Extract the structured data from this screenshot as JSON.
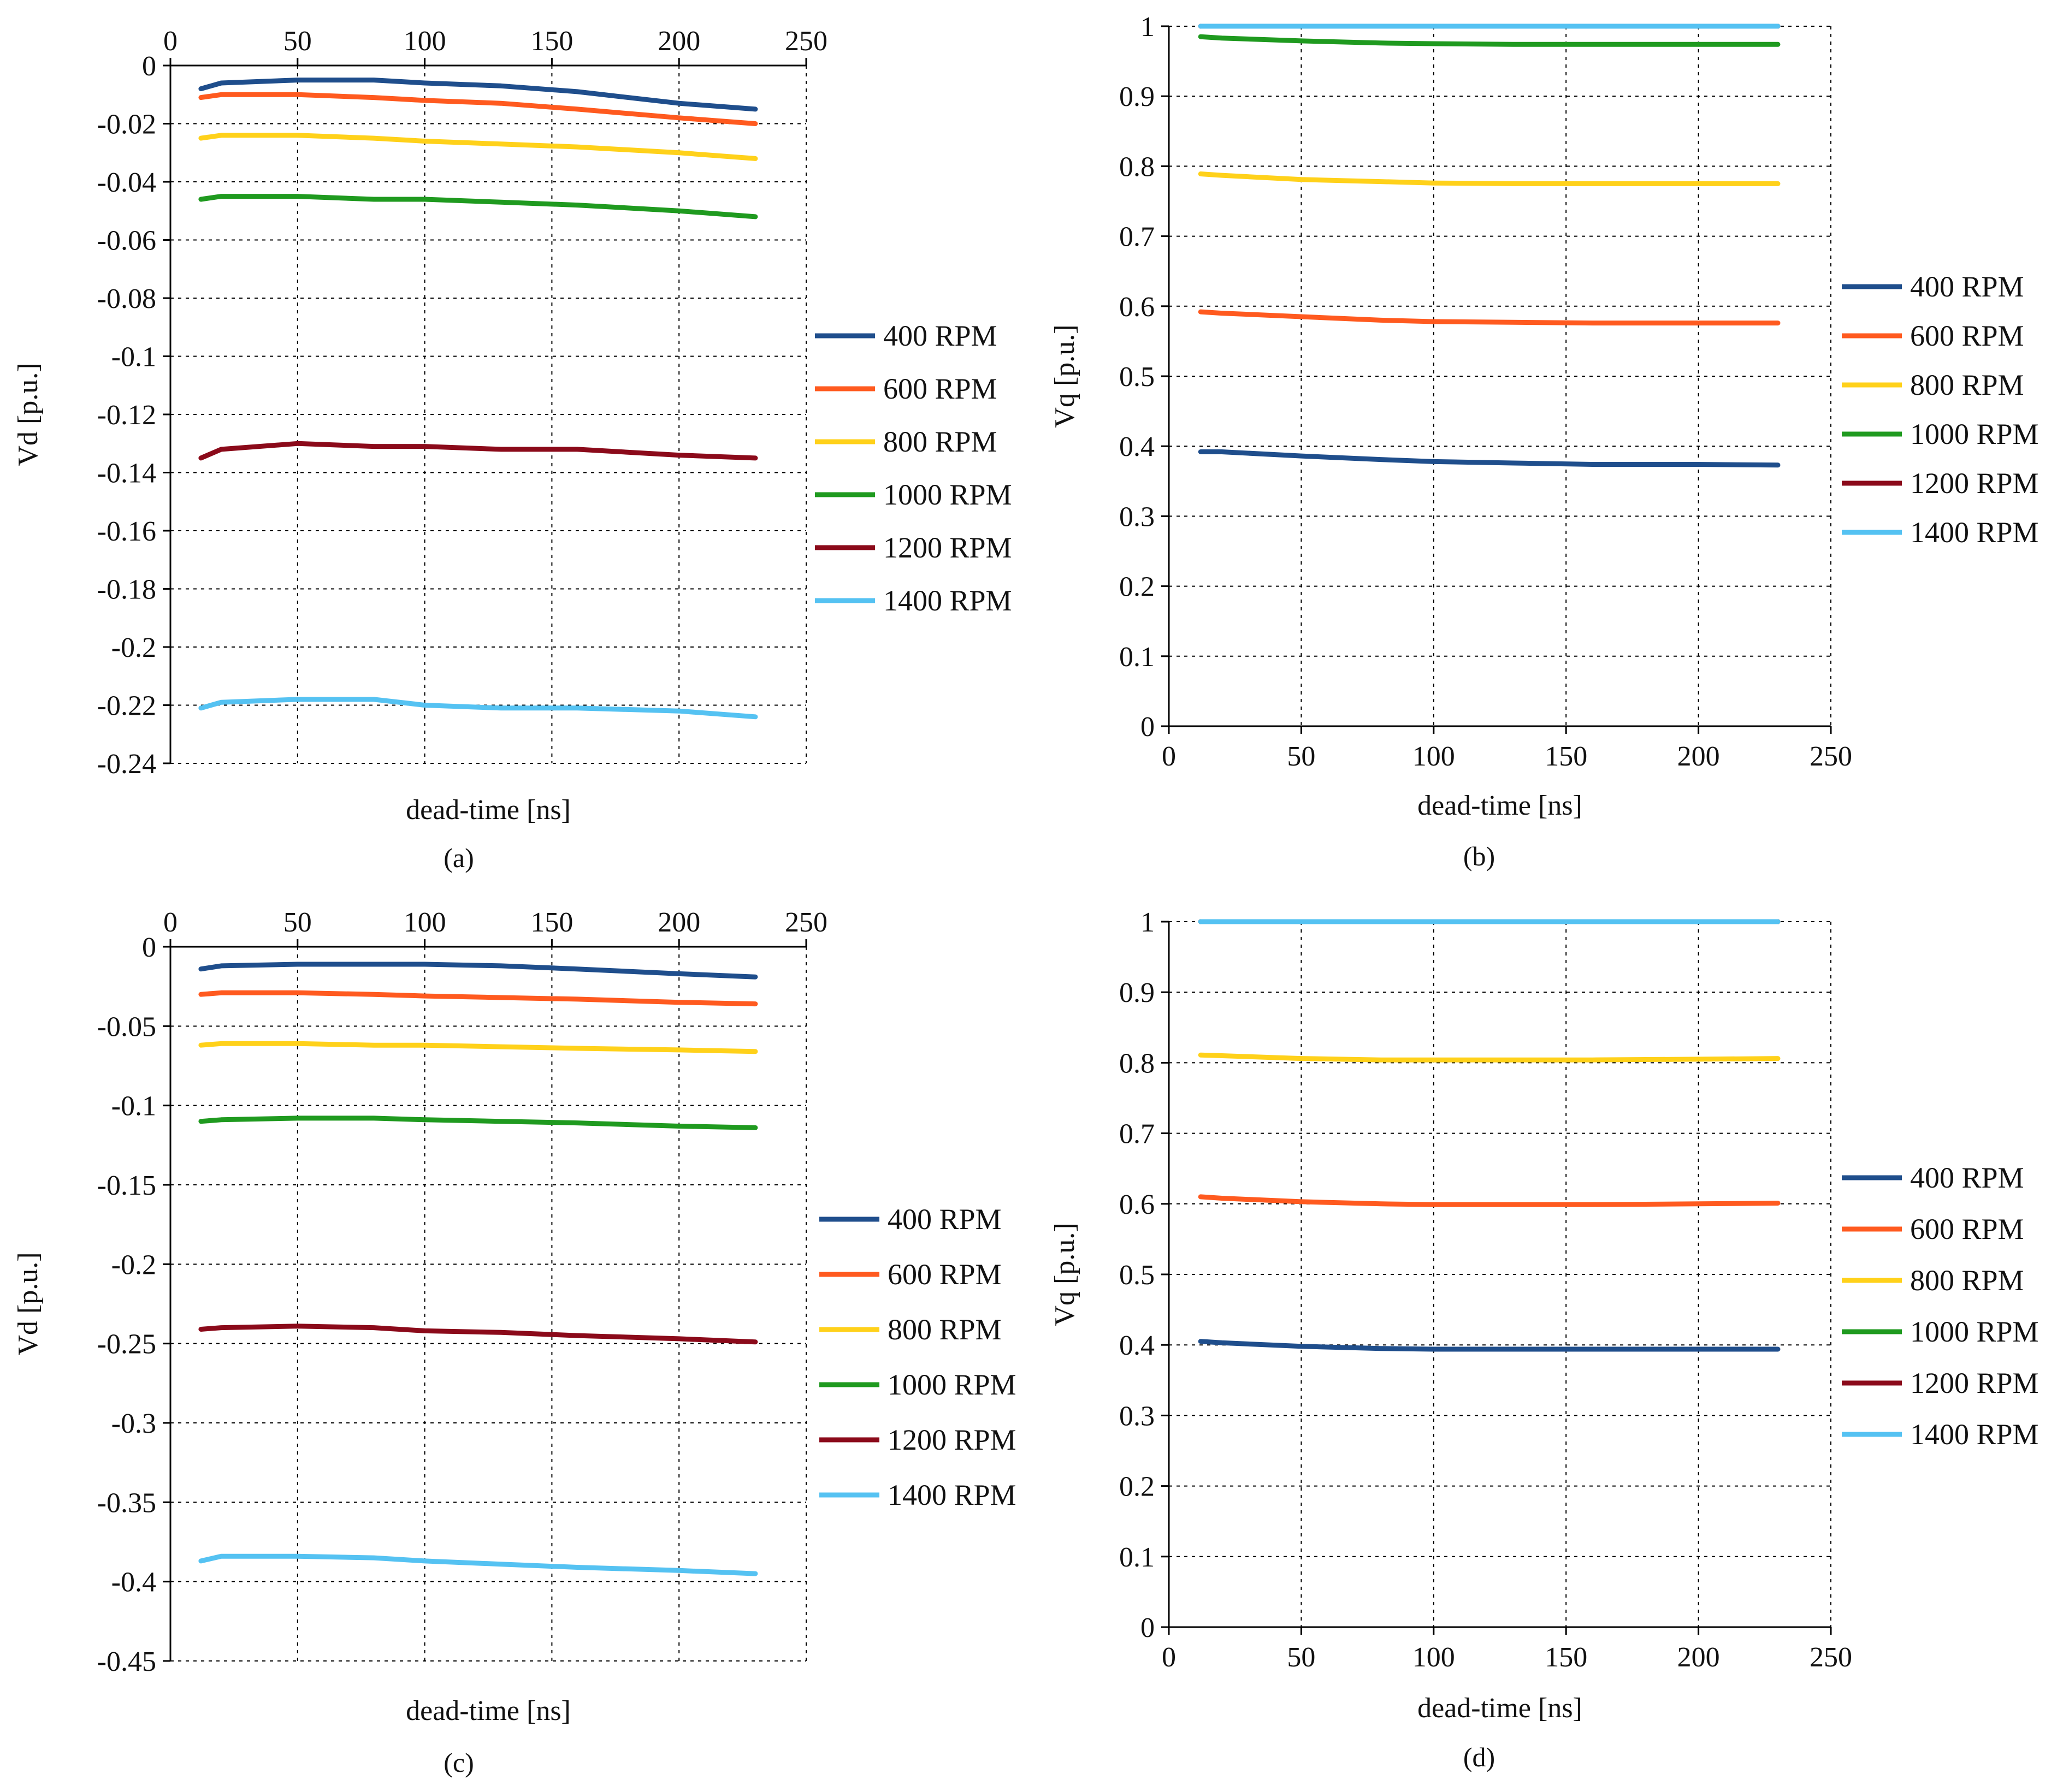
{
  "chart_data": [
    {
      "type": "line",
      "panel": "a",
      "caption": "(a)",
      "xlabel": "dead-time [ns]",
      "ylabel": "Vd [p.u.]",
      "x_axis_position": "top",
      "xlim": [
        0,
        250
      ],
      "xticks": [
        0,
        50,
        100,
        150,
        200,
        250
      ],
      "ylim": [
        -0.24,
        0
      ],
      "yticks": [
        0,
        -0.02,
        -0.04,
        -0.06,
        -0.08,
        -0.1,
        -0.12,
        -0.14,
        -0.16,
        -0.18,
        -0.2,
        -0.22,
        -0.24
      ],
      "ytick_labels": [
        "0",
        "-0.02",
        "-0.04",
        "-0.06",
        "-0.08",
        "-0.1",
        "-0.12",
        "-0.14",
        "-0.16",
        "-0.18",
        "-0.2",
        "-0.22",
        "-0.24"
      ],
      "grid": true,
      "legend": "right",
      "x": [
        12,
        20,
        50,
        80,
        100,
        130,
        160,
        200,
        230
      ],
      "series": [
        {
          "name": "400 RPM",
          "color": "#1f4e8c",
          "values": [
            -0.008,
            -0.006,
            -0.005,
            -0.005,
            -0.006,
            -0.007,
            -0.009,
            -0.013,
            -0.015
          ]
        },
        {
          "name": "600 RPM",
          "color": "#ff5a1f",
          "values": [
            -0.011,
            -0.01,
            -0.01,
            -0.011,
            -0.012,
            -0.013,
            -0.015,
            -0.018,
            -0.02
          ]
        },
        {
          "name": "800 RPM",
          "color": "#ffd11a",
          "values": [
            -0.025,
            -0.024,
            -0.024,
            -0.025,
            -0.026,
            -0.027,
            -0.028,
            -0.03,
            -0.032
          ]
        },
        {
          "name": "1000 RPM",
          "color": "#1f9a1f",
          "values": [
            -0.046,
            -0.045,
            -0.045,
            -0.046,
            -0.046,
            -0.047,
            -0.048,
            -0.05,
            -0.052
          ]
        },
        {
          "name": "1200 RPM",
          "color": "#8b0a1a",
          "values": [
            -0.135,
            -0.132,
            -0.13,
            -0.131,
            -0.131,
            -0.132,
            -0.132,
            -0.134,
            -0.135
          ]
        },
        {
          "name": "1400 RPM",
          "color": "#55c2f2",
          "values": [
            -0.221,
            -0.219,
            -0.218,
            -0.218,
            -0.22,
            -0.221,
            -0.221,
            -0.222,
            -0.224
          ]
        }
      ]
    },
    {
      "type": "line",
      "panel": "b",
      "caption": "(b)",
      "xlabel": "dead-time [ns]",
      "ylabel": "Vq [p.u.]",
      "x_axis_position": "bottom",
      "xlim": [
        0,
        250
      ],
      "xticks": [
        0,
        50,
        100,
        150,
        200,
        250
      ],
      "ylim": [
        0,
        1
      ],
      "yticks": [
        0,
        0.1,
        0.2,
        0.3,
        0.4,
        0.5,
        0.6,
        0.7,
        0.8,
        0.9,
        1
      ],
      "ytick_labels": [
        "0",
        "0.1",
        "0.2",
        "0.3",
        "0.4",
        "0.5",
        "0.6",
        "0.7",
        "0.8",
        "0.9",
        "1"
      ],
      "grid": true,
      "legend": "right",
      "x": [
        12,
        20,
        50,
        80,
        100,
        130,
        160,
        200,
        230
      ],
      "series": [
        {
          "name": "400 RPM",
          "color": "#1f4e8c",
          "values": [
            0.392,
            0.392,
            0.386,
            0.381,
            0.378,
            0.376,
            0.374,
            0.374,
            0.373
          ]
        },
        {
          "name": "600 RPM",
          "color": "#ff5a1f",
          "values": [
            0.592,
            0.59,
            0.585,
            0.58,
            0.578,
            0.577,
            0.576,
            0.576,
            0.576
          ]
        },
        {
          "name": "800 RPM",
          "color": "#ffd11a",
          "values": [
            0.789,
            0.787,
            0.781,
            0.778,
            0.776,
            0.775,
            0.775,
            0.775,
            0.775
          ]
        },
        {
          "name": "1000 RPM",
          "color": "#1f9a1f",
          "values": [
            0.985,
            0.983,
            0.979,
            0.976,
            0.975,
            0.974,
            0.974,
            0.974,
            0.974
          ]
        },
        {
          "name": "1200 RPM",
          "color": "#8b0a1a",
          "values": [
            1.0,
            1.0,
            1.0,
            1.0,
            1.0,
            1.0,
            1.0,
            1.0,
            1.0
          ]
        },
        {
          "name": "1400 RPM",
          "color": "#55c2f2",
          "values": [
            1.0,
            1.0,
            1.0,
            1.0,
            1.0,
            1.0,
            1.0,
            1.0,
            1.0
          ]
        }
      ]
    },
    {
      "type": "line",
      "panel": "c",
      "caption": "(c)",
      "xlabel": "dead-time [ns]",
      "ylabel": "Vd [p.u.]",
      "x_axis_position": "top",
      "xlim": [
        0,
        250
      ],
      "xticks": [
        0,
        50,
        100,
        150,
        200,
        250
      ],
      "ylim": [
        -0.45,
        0
      ],
      "yticks": [
        0,
        -0.05,
        -0.1,
        -0.15,
        -0.2,
        -0.25,
        -0.3,
        -0.35,
        -0.4,
        -0.45
      ],
      "ytick_labels": [
        "0",
        "-0.05",
        "-0.1",
        "-0.15",
        "-0.2",
        "-0.25",
        "-0.3",
        "-0.35",
        "-0.4",
        "-0.45"
      ],
      "grid": true,
      "legend": "right",
      "x": [
        12,
        20,
        50,
        80,
        100,
        130,
        160,
        200,
        230
      ],
      "series": [
        {
          "name": "400 RPM",
          "color": "#1f4e8c",
          "values": [
            -0.014,
            -0.012,
            -0.011,
            -0.011,
            -0.011,
            -0.012,
            -0.014,
            -0.017,
            -0.019
          ]
        },
        {
          "name": "600 RPM",
          "color": "#ff5a1f",
          "values": [
            -0.03,
            -0.029,
            -0.029,
            -0.03,
            -0.031,
            -0.032,
            -0.033,
            -0.035,
            -0.036
          ]
        },
        {
          "name": "800 RPM",
          "color": "#ffd11a",
          "values": [
            -0.062,
            -0.061,
            -0.061,
            -0.062,
            -0.062,
            -0.063,
            -0.064,
            -0.065,
            -0.066
          ]
        },
        {
          "name": "1000 RPM",
          "color": "#1f9a1f",
          "values": [
            -0.11,
            -0.109,
            -0.108,
            -0.108,
            -0.109,
            -0.11,
            -0.111,
            -0.113,
            -0.114
          ]
        },
        {
          "name": "1200 RPM",
          "color": "#8b0a1a",
          "values": [
            -0.241,
            -0.24,
            -0.239,
            -0.24,
            -0.242,
            -0.243,
            -0.245,
            -0.247,
            -0.249
          ]
        },
        {
          "name": "1400 RPM",
          "color": "#55c2f2",
          "values": [
            -0.387,
            -0.384,
            -0.384,
            -0.385,
            -0.387,
            -0.389,
            -0.391,
            -0.393,
            -0.395
          ]
        }
      ]
    },
    {
      "type": "line",
      "panel": "d",
      "caption": "(d)",
      "xlabel": "dead-time [ns]",
      "ylabel": "Vq [p.u.]",
      "x_axis_position": "bottom",
      "xlim": [
        0,
        250
      ],
      "xticks": [
        0,
        50,
        100,
        150,
        200,
        250
      ],
      "ylim": [
        0,
        1
      ],
      "yticks": [
        0,
        0.1,
        0.2,
        0.3,
        0.4,
        0.5,
        0.6,
        0.7,
        0.8,
        0.9,
        1
      ],
      "ytick_labels": [
        "0",
        "0.1",
        "0.2",
        "0.3",
        "0.4",
        "0.5",
        "0.6",
        "0.7",
        "0.8",
        "0.9",
        "1"
      ],
      "grid": true,
      "legend": "right",
      "x": [
        12,
        20,
        50,
        80,
        100,
        130,
        160,
        200,
        230
      ],
      "series": [
        {
          "name": "400 RPM",
          "color": "#1f4e8c",
          "values": [
            0.405,
            0.403,
            0.398,
            0.395,
            0.394,
            0.394,
            0.394,
            0.394,
            0.394
          ]
        },
        {
          "name": "600 RPM",
          "color": "#ff5a1f",
          "values": [
            0.61,
            0.608,
            0.603,
            0.6,
            0.599,
            0.599,
            0.599,
            0.6,
            0.601
          ]
        },
        {
          "name": "800 RPM",
          "color": "#ffd11a",
          "values": [
            0.811,
            0.81,
            0.806,
            0.804,
            0.804,
            0.804,
            0.804,
            0.805,
            0.806
          ]
        },
        {
          "name": "1000 RPM",
          "color": "#1f9a1f",
          "values": [
            1.0,
            1.0,
            1.0,
            1.0,
            1.0,
            1.0,
            1.0,
            1.0,
            1.0
          ]
        },
        {
          "name": "1200 RPM",
          "color": "#8b0a1a",
          "values": [
            1.0,
            1.0,
            1.0,
            1.0,
            1.0,
            1.0,
            1.0,
            1.0,
            1.0
          ]
        },
        {
          "name": "1400 RPM",
          "color": "#55c2f2",
          "values": [
            1.0,
            1.0,
            1.0,
            1.0,
            1.0,
            1.0,
            1.0,
            1.0,
            1.0
          ]
        }
      ]
    }
  ]
}
